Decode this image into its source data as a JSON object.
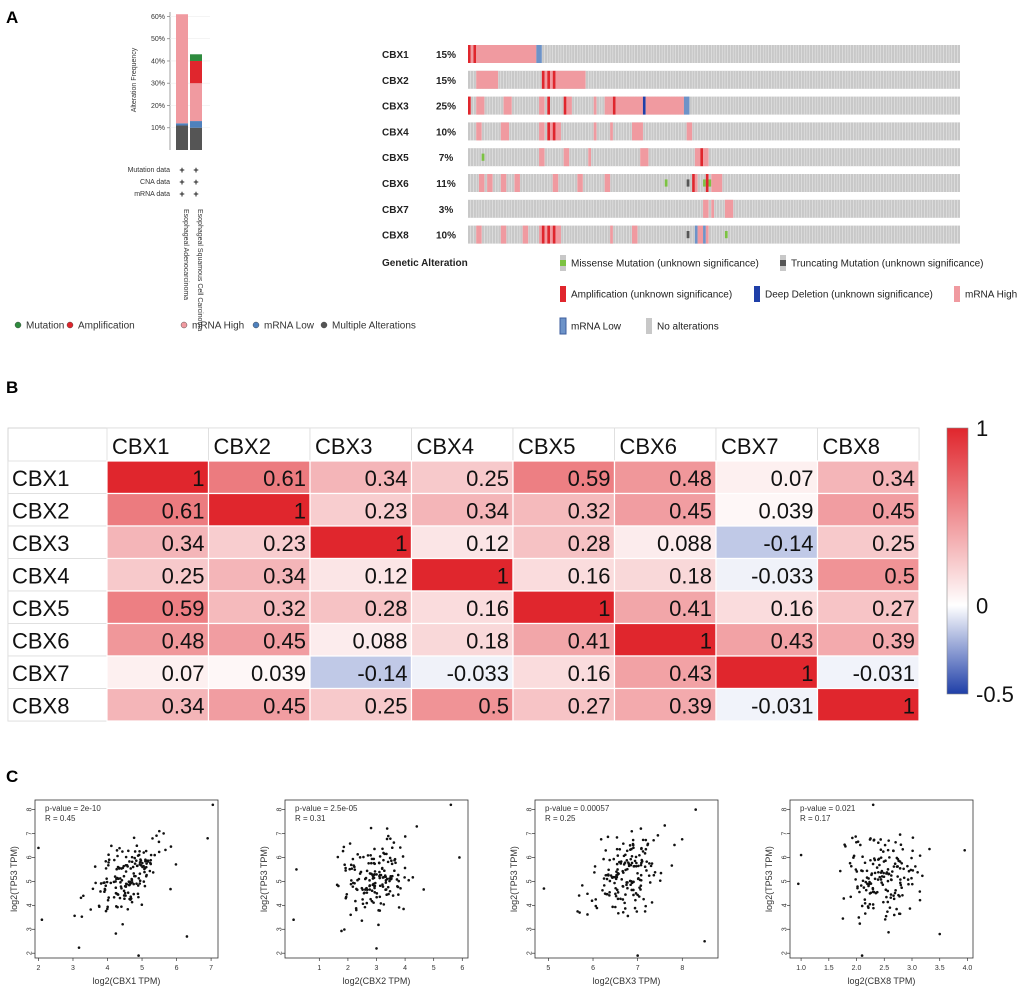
{
  "panel_labels": {
    "a": "A",
    "b": "B",
    "c": "C"
  },
  "chart_data": [
    {
      "type": "bar",
      "panel": "A",
      "stacked": true,
      "ylabel": "Alteration Frequency",
      "yticks": [
        "10%",
        "20%",
        "30%",
        "40%",
        "50%",
        "60%"
      ],
      "ylim": [
        0,
        62
      ],
      "categories": [
        "Esophageal Adenocarcinoma",
        "Esophageal Squamous Cell Carcinoma"
      ],
      "row_labels": [
        "Mutation data",
        "CNA data",
        "mRNA data"
      ],
      "row_marks": "+",
      "series": [
        {
          "name": "Multiple Alterations",
          "color": "#555555",
          "values": [
            11,
            10
          ]
        },
        {
          "name": "mRNA Low",
          "color": "#4f81bd",
          "values": [
            1,
            3
          ]
        },
        {
          "name": "mRNA High",
          "color": "#f09aa0",
          "values": [
            49,
            17
          ]
        },
        {
          "name": "Amplification",
          "color": "#e0262d",
          "values": [
            0,
            10
          ]
        },
        {
          "name": "Mutation",
          "color": "#2e8b3e",
          "values": [
            0,
            3
          ]
        }
      ],
      "legend": [
        {
          "name": "Mutation",
          "color": "#2e8b3e"
        },
        {
          "name": "Amplification",
          "color": "#e0262d"
        },
        {
          "name": "mRNA High",
          "color": "#f09aa0"
        },
        {
          "name": "mRNA Low",
          "color": "#4f81bd"
        },
        {
          "name": "Multiple Alterations",
          "color": "#555555"
        }
      ]
    },
    {
      "type": "heatmap",
      "panel": "A-oncoprint",
      "title": "Genetic Alteration",
      "samples": 180,
      "genes": [
        {
          "name": "CBX1",
          "pct": "15%",
          "alterations": [
            {
              "s": 0,
              "n": 1,
              "t": "amp"
            },
            {
              "s": 1,
              "n": 1,
              "t": "high"
            },
            {
              "s": 2,
              "n": 1,
              "t": "amp"
            },
            {
              "s": 3,
              "n": 22,
              "t": "high"
            },
            {
              "s": 25,
              "n": 2,
              "t": "low"
            }
          ]
        },
        {
          "name": "CBX2",
          "pct": "15%",
          "alterations": [
            {
              "s": 3,
              "n": 8,
              "t": "high"
            },
            {
              "s": 27,
              "n": 1,
              "t": "amp"
            },
            {
              "s": 28,
              "n": 1,
              "t": "high"
            },
            {
              "s": 29,
              "n": 1,
              "t": "amp"
            },
            {
              "s": 30,
              "n": 1,
              "t": "high"
            },
            {
              "s": 31,
              "n": 1,
              "t": "amp"
            },
            {
              "s": 32,
              "n": 11,
              "t": "high"
            }
          ]
        },
        {
          "name": "CBX3",
          "pct": "25%",
          "alterations": [
            {
              "s": 0,
              "n": 1,
              "t": "amp"
            },
            {
              "s": 3,
              "n": 3,
              "t": "high"
            },
            {
              "s": 13,
              "n": 3,
              "t": "high"
            },
            {
              "s": 26,
              "n": 2,
              "t": "high"
            },
            {
              "s": 29,
              "n": 1,
              "t": "amp"
            },
            {
              "s": 35,
              "n": 1,
              "t": "amp"
            },
            {
              "s": 36,
              "n": 2,
              "t": "high"
            },
            {
              "s": 46,
              "n": 1,
              "t": "high"
            },
            {
              "s": 50,
              "n": 3,
              "t": "high"
            },
            {
              "s": 53,
              "n": 1,
              "t": "amp"
            },
            {
              "s": 54,
              "n": 10,
              "t": "high"
            },
            {
              "s": 64,
              "n": 1,
              "t": "deep"
            },
            {
              "s": 65,
              "n": 14,
              "t": "high"
            },
            {
              "s": 79,
              "n": 2,
              "t": "low"
            }
          ]
        },
        {
          "name": "CBX4",
          "pct": "10%",
          "alterations": [
            {
              "s": 3,
              "n": 2,
              "t": "high"
            },
            {
              "s": 12,
              "n": 3,
              "t": "high"
            },
            {
              "s": 26,
              "n": 2,
              "t": "high"
            },
            {
              "s": 29,
              "n": 1,
              "t": "amp"
            },
            {
              "s": 30,
              "n": 1,
              "t": "high"
            },
            {
              "s": 31,
              "n": 1,
              "t": "amp"
            },
            {
              "s": 32,
              "n": 2,
              "t": "high"
            },
            {
              "s": 46,
              "n": 1,
              "t": "high"
            },
            {
              "s": 52,
              "n": 1,
              "t": "high"
            },
            {
              "s": 60,
              "n": 4,
              "t": "high"
            },
            {
              "s": 80,
              "n": 2,
              "t": "high"
            }
          ]
        },
        {
          "name": "CBX5",
          "pct": "7%",
          "alterations": [
            {
              "s": 5,
              "n": 1,
              "t": "mis"
            },
            {
              "s": 26,
              "n": 2,
              "t": "high"
            },
            {
              "s": 35,
              "n": 2,
              "t": "high"
            },
            {
              "s": 44,
              "n": 1,
              "t": "high"
            },
            {
              "s": 63,
              "n": 3,
              "t": "high"
            },
            {
              "s": 83,
              "n": 2,
              "t": "high"
            },
            {
              "s": 85,
              "n": 1,
              "t": "amp"
            },
            {
              "s": 86,
              "n": 2,
              "t": "high"
            }
          ]
        },
        {
          "name": "CBX6",
          "pct": "11%",
          "alterations": [
            {
              "s": 4,
              "n": 2,
              "t": "high"
            },
            {
              "s": 7,
              "n": 2,
              "t": "high"
            },
            {
              "s": 12,
              "n": 2,
              "t": "high"
            },
            {
              "s": 17,
              "n": 2,
              "t": "high"
            },
            {
              "s": 31,
              "n": 2,
              "t": "high"
            },
            {
              "s": 40,
              "n": 2,
              "t": "high"
            },
            {
              "s": 50,
              "n": 2,
              "t": "high"
            },
            {
              "s": 72,
              "n": 1,
              "t": "mis"
            },
            {
              "s": 80,
              "n": 1,
              "t": "trunc"
            },
            {
              "s": 82,
              "n": 1,
              "t": "amp"
            },
            {
              "s": 83,
              "n": 1,
              "t": "high"
            },
            {
              "s": 86,
              "n": 1,
              "t": "mis"
            },
            {
              "s": 87,
              "n": 1,
              "t": "amp"
            },
            {
              "s": 88,
              "n": 1,
              "t": "mis"
            },
            {
              "s": 89,
              "n": 4,
              "t": "high"
            }
          ]
        },
        {
          "name": "CBX7",
          "pct": "3%",
          "alterations": [
            {
              "s": 86,
              "n": 2,
              "t": "high"
            },
            {
              "s": 89,
              "n": 1,
              "t": "high"
            },
            {
              "s": 94,
              "n": 3,
              "t": "high"
            }
          ]
        },
        {
          "name": "CBX8",
          "pct": "10%",
          "alterations": [
            {
              "s": 3,
              "n": 2,
              "t": "high"
            },
            {
              "s": 12,
              "n": 2,
              "t": "high"
            },
            {
              "s": 20,
              "n": 2,
              "t": "high"
            },
            {
              "s": 26,
              "n": 1,
              "t": "high"
            },
            {
              "s": 27,
              "n": 1,
              "t": "amp"
            },
            {
              "s": 28,
              "n": 1,
              "t": "high"
            },
            {
              "s": 29,
              "n": 1,
              "t": "amp"
            },
            {
              "s": 30,
              "n": 1,
              "t": "high"
            },
            {
              "s": 31,
              "n": 1,
              "t": "amp"
            },
            {
              "s": 32,
              "n": 2,
              "t": "high"
            },
            {
              "s": 52,
              "n": 1,
              "t": "high"
            },
            {
              "s": 60,
              "n": 2,
              "t": "high"
            },
            {
              "s": 80,
              "n": 1,
              "t": "trunc"
            },
            {
              "s": 83,
              "n": 1,
              "t": "low"
            },
            {
              "s": 84,
              "n": 2,
              "t": "high"
            },
            {
              "s": 86,
              "n": 1,
              "t": "low"
            },
            {
              "s": 87,
              "n": 1,
              "t": "high"
            },
            {
              "s": 94,
              "n": 1,
              "t": "mis"
            }
          ]
        }
      ],
      "legend": [
        {
          "key": "mis",
          "label": "Missense Mutation (unknown significance)",
          "color": "#7cc242"
        },
        {
          "key": "trunc",
          "label": "Truncating Mutation (unknown significance)",
          "color": "#555555"
        },
        {
          "key": "amp",
          "label": "Amplification (unknown significance)",
          "color": "#e0262d"
        },
        {
          "key": "deep",
          "label": "Deep Deletion (unknown significance)",
          "color": "#1f3fa8"
        },
        {
          "key": "high",
          "label": "mRNA High",
          "color": "#f09aa0"
        },
        {
          "key": "low",
          "label": "mRNA Low",
          "color": "#6d93c8"
        },
        {
          "key": "none",
          "label": "No alterations",
          "color": "#c8c8c8"
        }
      ]
    },
    {
      "type": "heatmap",
      "panel": "B",
      "rows": [
        "CBX1",
        "CBX2",
        "CBX3",
        "CBX4",
        "CBX5",
        "CBX6",
        "CBX7",
        "CBX8"
      ],
      "cols": [
        "CBX1",
        "CBX2",
        "CBX3",
        "CBX4",
        "CBX5",
        "CBX6",
        "CBX7",
        "CBX8"
      ],
      "values": [
        [
          "1",
          "0.61",
          "0.34",
          "0.25",
          "0.59",
          "0.48",
          "0.07",
          "0.34"
        ],
        [
          "0.61",
          "1",
          "0.23",
          "0.34",
          "0.32",
          "0.45",
          "0.039",
          "0.45"
        ],
        [
          "0.34",
          "0.23",
          "1",
          "0.12",
          "0.28",
          "0.088",
          "-0.14",
          "0.25"
        ],
        [
          "0.25",
          "0.34",
          "0.12",
          "1",
          "0.16",
          "0.18",
          "-0.033",
          "0.5"
        ],
        [
          "0.59",
          "0.32",
          "0.28",
          "0.16",
          "1",
          "0.41",
          "0.16",
          "0.27"
        ],
        [
          "0.48",
          "0.45",
          "0.088",
          "0.18",
          "0.41",
          "1",
          "0.43",
          "0.39"
        ],
        [
          "0.07",
          "0.039",
          "-0.14",
          "-0.033",
          "0.16",
          "0.43",
          "1",
          "-0.031"
        ],
        [
          "0.34",
          "0.45",
          "0.25",
          "0.5",
          "0.27",
          "0.39",
          "-0.031",
          "1"
        ]
      ],
      "colorbar": {
        "min": -0.5,
        "max": 1,
        "labels": [
          "1",
          "0",
          "-0.5"
        ],
        "high": "#e0262d",
        "mid": "#ffffff",
        "low": "#1f3fa8"
      }
    },
    {
      "type": "scatter",
      "panel": "C",
      "plots": [
        {
          "xlabel": "log2(CBX1 TPM)",
          "ylabel": "log2(TP53 TPM)",
          "pvalue": "p-value = 2e-10",
          "r": "R = 0.45",
          "xlim": [
            1.9,
            7.2
          ],
          "xticks": [
            "2",
            "3",
            "4",
            "5",
            "6",
            "7"
          ],
          "ylim": [
            1.8,
            8.4
          ],
          "yticks": [
            "2",
            "3",
            "4",
            "5",
            "6",
            "7",
            "8"
          ],
          "r_value": 0.45,
          "seed": 11,
          "points": [
            [
              2.0,
              6.4
            ],
            [
              2.1,
              3.4
            ],
            [
              7.05,
              8.2
            ],
            [
              4.9,
              1.9
            ],
            [
              3.3,
              4.4
            ],
            [
              6.9,
              6.8
            ],
            [
              6.3,
              2.7
            ],
            [
              5.5,
              7.1
            ]
          ]
        },
        {
          "xlabel": "log2(CBX2 TPM)",
          "ylabel": "log2(TP53 TPM)",
          "pvalue": "p-value = 2.5e-05",
          "r": "R = 0.31",
          "xlim": [
            -0.2,
            6.2
          ],
          "xticks": [
            "1",
            "2",
            "3",
            "4",
            "5",
            "6"
          ],
          "ylim": [
            1.8,
            8.4
          ],
          "yticks": [
            "2",
            "3",
            "4",
            "5",
            "6",
            "7",
            "8"
          ],
          "r_value": 0.31,
          "seed": 23,
          "points": [
            [
              5.6,
              8.2
            ],
            [
              0.1,
              3.4
            ],
            [
              0.2,
              5.5
            ],
            [
              5.9,
              6.0
            ],
            [
              3.0,
              2.2
            ]
          ]
        },
        {
          "xlabel": "log2(CBX3 TPM)",
          "ylabel": "log2(TP53 TPM)",
          "pvalue": "p-value = 0.00057",
          "r": "R = 0.25",
          "xlim": [
            4.7,
            8.8
          ],
          "xticks": [
            "5",
            "6",
            "7",
            "8"
          ],
          "ylim": [
            1.8,
            8.4
          ],
          "yticks": [
            "2",
            "3",
            "4",
            "5",
            "6",
            "7",
            "8"
          ],
          "r_value": 0.25,
          "seed": 37,
          "points": [
            [
              4.9,
              4.7
            ],
            [
              8.5,
              2.5
            ],
            [
              8.3,
              8.0
            ],
            [
              7.0,
              1.9
            ],
            [
              5.7,
              3.7
            ]
          ]
        },
        {
          "xlabel": "log2(CBX8 TPM)",
          "ylabel": "log2(TP53 TPM)",
          "pvalue": "p-value = 0.021",
          "r": "R = 0.17",
          "xlim": [
            0.8,
            4.1
          ],
          "xticks": [
            "1.0",
            "1.5",
            "2.0",
            "2.5",
            "3.0",
            "3.5",
            "4.0"
          ],
          "ylim": [
            1.8,
            8.4
          ],
          "yticks": [
            "2",
            "3",
            "4",
            "5",
            "6",
            "7",
            "8"
          ],
          "r_value": 0.17,
          "seed": 53,
          "points": [
            [
              2.3,
              8.2
            ],
            [
              2.1,
              1.9
            ],
            [
              3.95,
              6.3
            ],
            [
              3.5,
              2.8
            ],
            [
              0.95,
              4.9
            ],
            [
              1.0,
              6.1
            ]
          ]
        }
      ]
    }
  ]
}
